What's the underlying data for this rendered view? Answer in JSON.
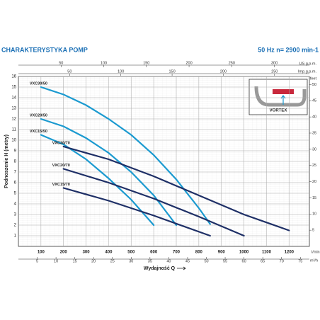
{
  "chart_data": {
    "type": "line",
    "title": "CHARAKTERYSTYKA POMP",
    "subtitle": "50 Hz  n= 2900 min-1",
    "x_label": "Wydajność Q",
    "y_label": "Podnoszenie H (metry)",
    "x_unit": "l/min",
    "x2_unit": "m³/h",
    "x3_unit": "US g.p.m.",
    "x4_unit": "Imp.g.p.m.",
    "y2_unit": "feet",
    "inset_label": "VORTEX",
    "xlim": [
      0,
      1290
    ],
    "xticks": [
      100,
      200,
      300,
      400,
      500,
      600,
      700,
      800,
      900,
      1000,
      1100,
      1200
    ],
    "x2lim": [
      0,
      77.4
    ],
    "x2ticks": [
      5,
      10,
      15,
      20,
      25,
      30,
      35,
      40,
      45,
      50,
      55,
      60,
      65,
      70,
      75
    ],
    "x3lim": [
      0,
      341
    ],
    "x3ticks": [
      50,
      100,
      150,
      200,
      250,
      300
    ],
    "x4lim": [
      0,
      284
    ],
    "x4ticks": [
      50,
      100,
      150,
      200,
      250
    ],
    "ylim": [
      0,
      16
    ],
    "yticks": [
      1,
      2,
      3,
      4,
      5,
      6,
      7,
      8,
      9,
      10,
      11,
      12,
      13,
      14,
      15,
      16
    ],
    "y2lim": [
      0,
      52.5
    ],
    "y2ticks": [
      5,
      10,
      15,
      20,
      25,
      30,
      35,
      40,
      45,
      50
    ],
    "grid": true,
    "series": [
      {
        "name": "VXC30/50",
        "color": "#1b9ad0",
        "x": [
          100,
          200,
          300,
          400,
          500,
          600,
          700,
          800,
          850
        ],
        "values": [
          15,
          14.3,
          13.3,
          12,
          10.5,
          8.6,
          6.3,
          3.6,
          2.1
        ]
      },
      {
        "name": "VXC20/50",
        "color": "#1b9ad0",
        "x": [
          100,
          200,
          300,
          400,
          500,
          600,
          700
        ],
        "values": [
          12,
          11.3,
          10.2,
          8.8,
          7,
          4.8,
          2
        ]
      },
      {
        "name": "VXC15/50",
        "color": "#1b9ad0",
        "x": [
          100,
          200,
          300,
          400,
          500,
          600
        ],
        "values": [
          10.5,
          9.6,
          8.2,
          6.4,
          4.4,
          2
        ]
      },
      {
        "name": "VXC30/70",
        "color": "#1e2f66",
        "x": [
          200,
          400,
          600,
          800,
          1000,
          1200
        ],
        "values": [
          9.4,
          8.2,
          6.6,
          4.8,
          3.0,
          1.5
        ]
      },
      {
        "name": "VXC20/70",
        "color": "#1e2f66",
        "x": [
          200,
          400,
          600,
          800,
          1000
        ],
        "values": [
          7.3,
          6.0,
          4.5,
          2.8,
          1.0
        ]
      },
      {
        "name": "VXC15/70",
        "color": "#1e2f66",
        "x": [
          200,
          400,
          600,
          850
        ],
        "values": [
          5.5,
          4.3,
          2.9,
          1.0
        ]
      }
    ]
  }
}
